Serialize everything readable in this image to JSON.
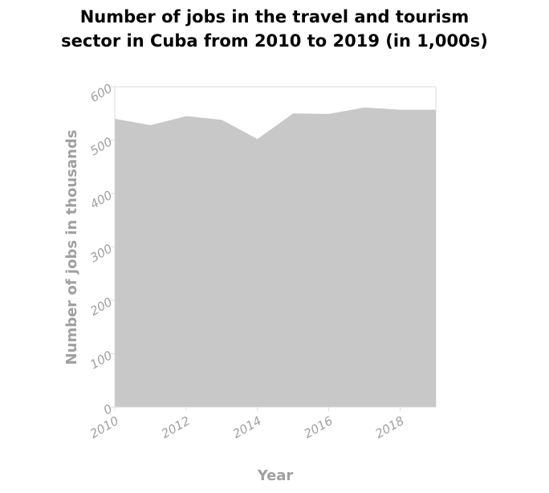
{
  "chart_data": {
    "type": "area",
    "title_lines": [
      "Number of jobs in the travel and tourism",
      "sector in Cuba from 2010 to 2019 (in 1,000s)"
    ],
    "xlabel": "Year",
    "ylabel": "Number of jobs in thousands",
    "x": [
      2010,
      2011,
      2012,
      2013,
      2014,
      2015,
      2016,
      2017,
      2018,
      2019
    ],
    "values": [
      540,
      528,
      545,
      538,
      502,
      550,
      549,
      561,
      557,
      557
    ],
    "xlim": [
      2010,
      2019
    ],
    "ylim": [
      0,
      600
    ],
    "xticks": [
      2010,
      2012,
      2014,
      2016,
      2018
    ],
    "yticks": [
      0,
      100,
      200,
      300,
      400,
      500,
      600
    ],
    "grid": false,
    "fill_color": "#c8c8c8",
    "axis_color": "#dddddd",
    "label_color": "#a0a0a0"
  }
}
